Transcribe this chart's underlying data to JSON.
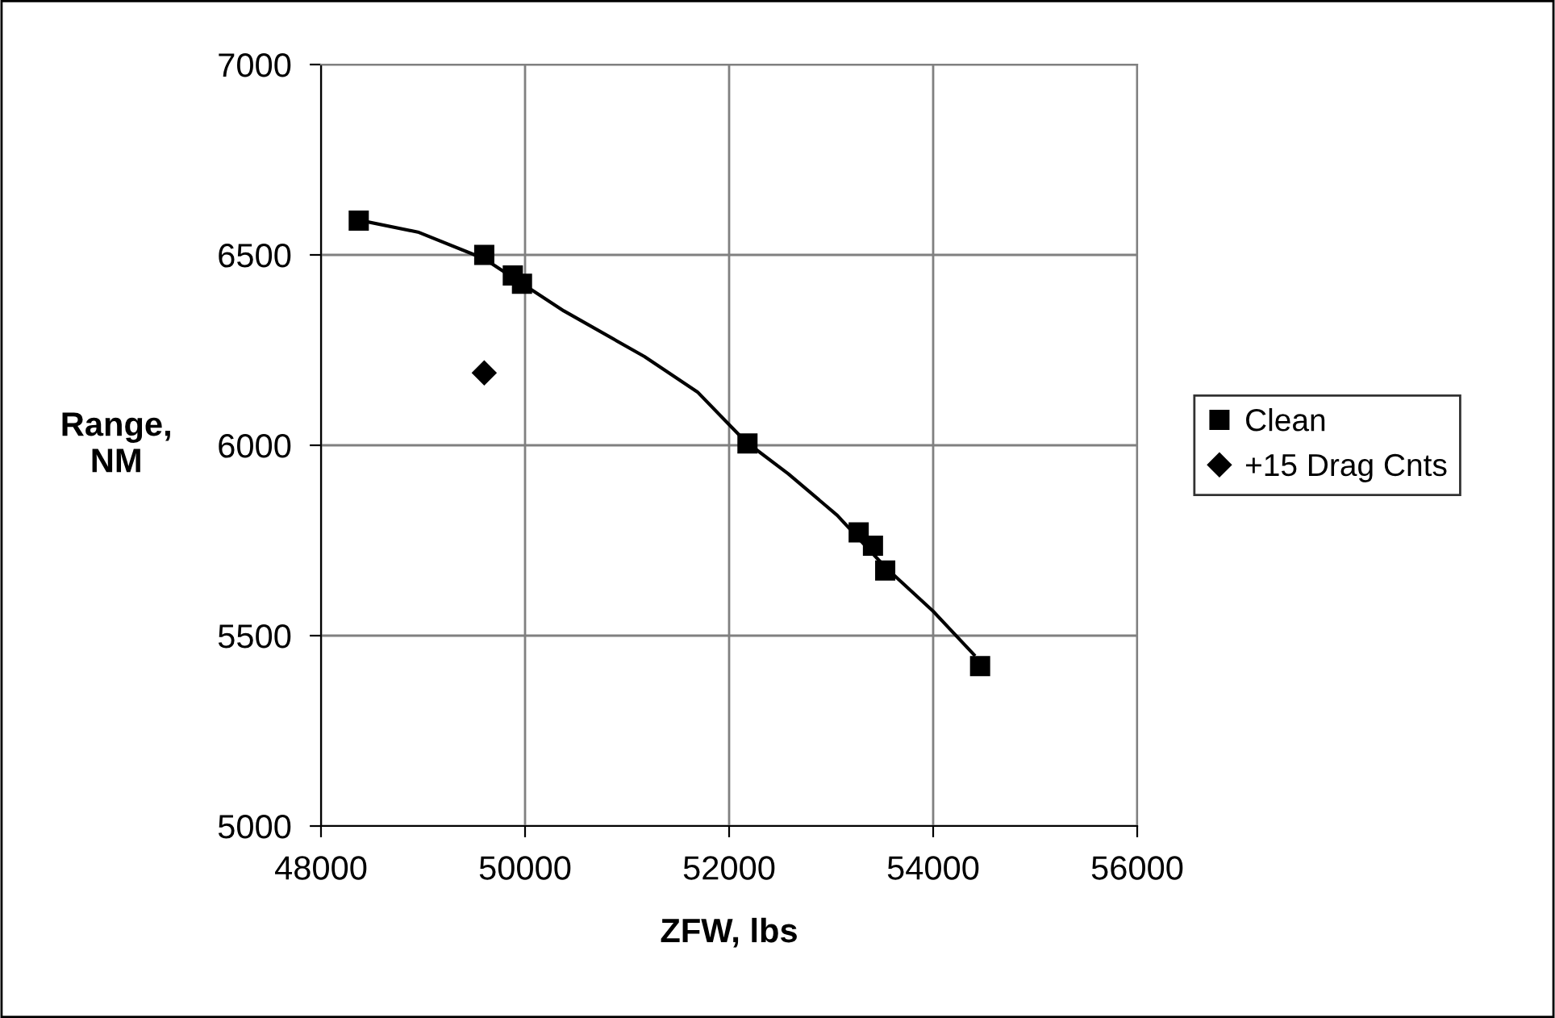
{
  "chart_data": {
    "type": "scatter",
    "xlabel": "ZFW, lbs",
    "ylabel": "Range,\nNM",
    "xlim": [
      48000,
      56000
    ],
    "xticks": [
      48000,
      50000,
      52000,
      54000,
      56000
    ],
    "ylim": [
      5000,
      7000
    ],
    "yticks": [
      5000,
      5500,
      6000,
      6500,
      7000
    ],
    "grid": true,
    "legend": "right",
    "series": [
      {
        "name": "Clean",
        "marker": "square",
        "color": "#000000",
        "x": [
          48370,
          49600,
          49880,
          49970,
          52180,
          53270,
          53410,
          53530,
          54460
        ],
        "values": [
          6590,
          6500,
          6446,
          6424,
          6005,
          5771,
          5736,
          5671,
          5420
        ]
      },
      {
        "name": "+15 Drag Cnts",
        "marker": "diamond",
        "color": "#000000",
        "x": [
          49600
        ],
        "values": [
          6190
        ]
      },
      {
        "type": "line",
        "marker": "none",
        "color": "#000000",
        "x": [
          48400,
          48950,
          49600,
          50380,
          51170,
          51690,
          52160,
          52580,
          53060,
          53530,
          54000,
          54400
        ],
        "values": [
          6590,
          6560,
          6490,
          6353,
          6233,
          6140,
          6010,
          5925,
          5816,
          5680,
          5564,
          5450
        ]
      }
    ]
  }
}
